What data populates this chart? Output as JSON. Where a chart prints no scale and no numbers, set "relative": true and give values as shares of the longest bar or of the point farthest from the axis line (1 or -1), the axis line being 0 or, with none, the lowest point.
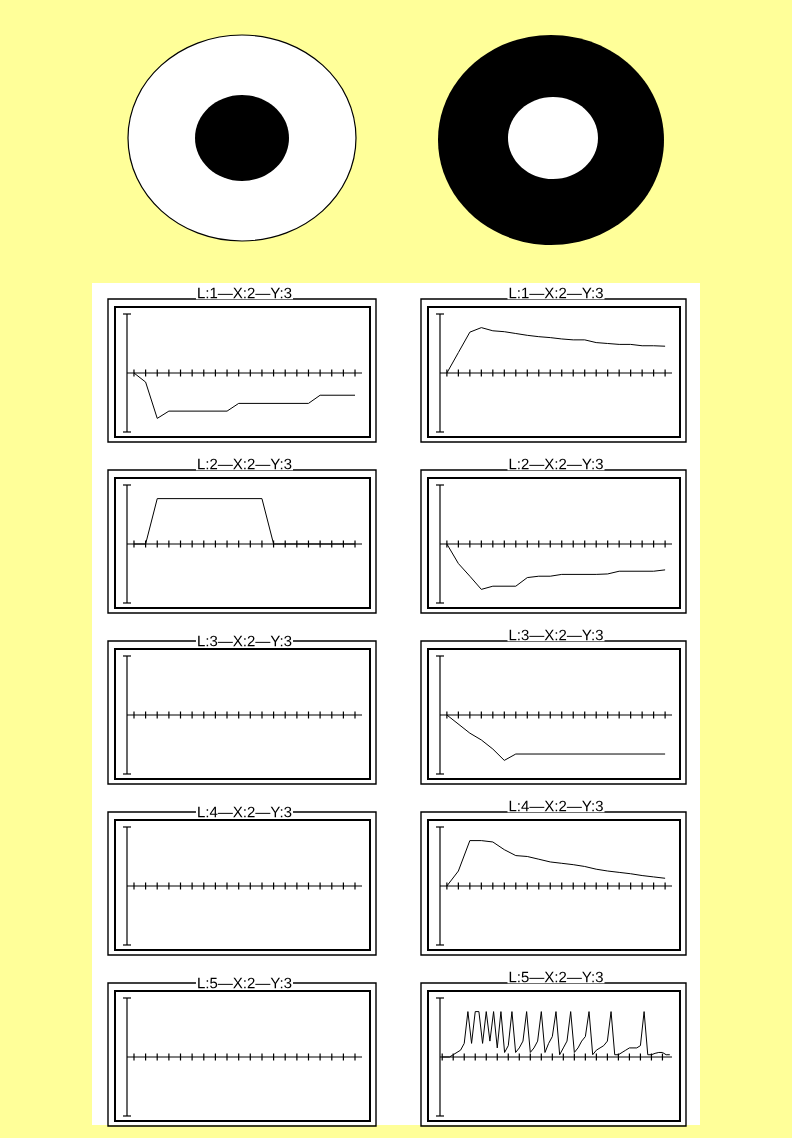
{
  "chart_data": [
    {
      "type": "line",
      "relative": true,
      "title": "L:1—X:2—Y:3",
      "color": "#000000",
      "categories": [
        null,
        null,
        null,
        null,
        null,
        null,
        null,
        null,
        null,
        null,
        null,
        null,
        null,
        null,
        null,
        null,
        null,
        null,
        null,
        null
      ],
      "values": [
        0,
        -0.2,
        -1,
        -0.84,
        -0.84,
        -0.84,
        -0.84,
        -0.84,
        -0.84,
        -0.67,
        -0.67,
        -0.67,
        -0.67,
        -0.67,
        -0.67,
        -0.67,
        -0.49,
        -0.49,
        -0.49,
        -0.49
      ]
    },
    {
      "type": "line",
      "relative": true,
      "title": "L:1—X:2—Y:3",
      "color": "#000000",
      "categories": [
        null,
        null,
        null,
        null,
        null,
        null,
        null,
        null,
        null,
        null,
        null,
        null,
        null,
        null,
        null,
        null,
        null,
        null,
        null,
        null
      ],
      "values": [
        0,
        0.45,
        0.9,
        1,
        0.93,
        0.91,
        0.87,
        0.83,
        0.8,
        0.78,
        0.75,
        0.73,
        0.73,
        0.67,
        0.65,
        0.63,
        0.63,
        0.6,
        0.6,
        0.59
      ]
    },
    {
      "type": "line",
      "relative": true,
      "title": "L:2—X:2—Y:3",
      "color": "#000000",
      "categories": [
        null,
        null,
        null,
        null,
        null,
        null,
        null,
        null,
        null,
        null,
        null,
        null,
        null,
        null,
        null,
        null,
        null,
        null,
        null,
        null
      ],
      "values": [
        0,
        0,
        1,
        1,
        1,
        1,
        1,
        1,
        1,
        1,
        1,
        1,
        0,
        0,
        0,
        0,
        0,
        0,
        0,
        0
      ]
    },
    {
      "type": "line",
      "relative": true,
      "title": "L:2—X:2—Y:3",
      "color": "#000000",
      "categories": [
        null,
        null,
        null,
        null,
        null,
        null,
        null,
        null,
        null,
        null,
        null,
        null,
        null,
        null,
        null,
        null,
        null,
        null,
        null,
        null
      ],
      "values": [
        0,
        -0.43,
        -0.71,
        -1,
        -0.93,
        -0.93,
        -0.93,
        -0.74,
        -0.71,
        -0.71,
        -0.67,
        -0.67,
        -0.67,
        -0.67,
        -0.66,
        -0.6,
        -0.6,
        -0.6,
        -0.6,
        -0.57
      ]
    },
    {
      "type": "other",
      "title": "L:3—X:2—Y:3"
    },
    {
      "type": "line",
      "relative": true,
      "title": "L:3—X:2—Y:3",
      "color": "#000000",
      "categories": [
        null,
        null,
        null,
        null,
        null,
        null,
        null,
        null,
        null,
        null,
        null,
        null,
        null,
        null,
        null,
        null,
        null,
        null,
        null,
        null
      ],
      "values": [
        0,
        -0.2,
        -0.4,
        -0.55,
        -0.75,
        -1,
        -0.86,
        -0.86,
        -0.86,
        -0.86,
        -0.86,
        -0.86,
        -0.86,
        -0.86,
        -0.86,
        -0.86,
        -0.86,
        -0.86,
        -0.86,
        -0.86
      ]
    },
    {
      "type": "other",
      "title": "L:4—X:2—Y:3"
    },
    {
      "type": "line",
      "relative": true,
      "title": "L:4—X:2—Y:3",
      "color": "#000000",
      "categories": [
        null,
        null,
        null,
        null,
        null,
        null,
        null,
        null,
        null,
        null,
        null,
        null,
        null,
        null,
        null,
        null,
        null,
        null,
        null,
        null
      ],
      "values": [
        0,
        0.33,
        1,
        1,
        0.97,
        0.8,
        0.67,
        0.65,
        0.59,
        0.53,
        0.5,
        0.47,
        0.43,
        0.37,
        0.33,
        0.3,
        0.27,
        0.23,
        0.2,
        0.17
      ]
    },
    {
      "type": "other",
      "title": "L:5—X:2—Y:3"
    },
    {
      "type": "line",
      "relative": true,
      "title": "L:5—X:2—Y:3",
      "color": "#000000",
      "categories": [
        null,
        null,
        null,
        null,
        null,
        null,
        null,
        null,
        null,
        null,
        null,
        null,
        null,
        null,
        null,
        null,
        null,
        null,
        null,
        null,
        null,
        null,
        null,
        null,
        null,
        null,
        null,
        null,
        null,
        null,
        null,
        null,
        null,
        null,
        null,
        null,
        null,
        null,
        null,
        null,
        null,
        null,
        null,
        null,
        null,
        null,
        null,
        null,
        null,
        null,
        null,
        null,
        null,
        null,
        null,
        null,
        null,
        null,
        null,
        null,
        null,
        null,
        null
      ],
      "values": [
        0,
        0,
        0,
        0.05,
        0.1,
        0.15,
        0.3,
        1,
        0.3,
        1,
        1,
        0.3,
        1,
        0.35,
        1,
        0.2,
        1,
        0.1,
        0.25,
        1,
        0.1,
        0.2,
        0.35,
        1,
        0.1,
        0.2,
        0.35,
        1,
        0.1,
        0.3,
        0.45,
        1,
        0.05,
        0.2,
        0.35,
        1,
        0.1,
        0.2,
        0.35,
        0.45,
        1,
        0.05,
        0.15,
        0.2,
        0.25,
        0.35,
        1,
        0.05,
        0.05,
        0.1,
        0.15,
        0.2,
        0.2,
        0.2,
        0.25,
        1,
        0.05,
        0.05,
        0.08,
        0.1,
        0.1,
        0.05,
        0.05
      ]
    }
  ]
}
